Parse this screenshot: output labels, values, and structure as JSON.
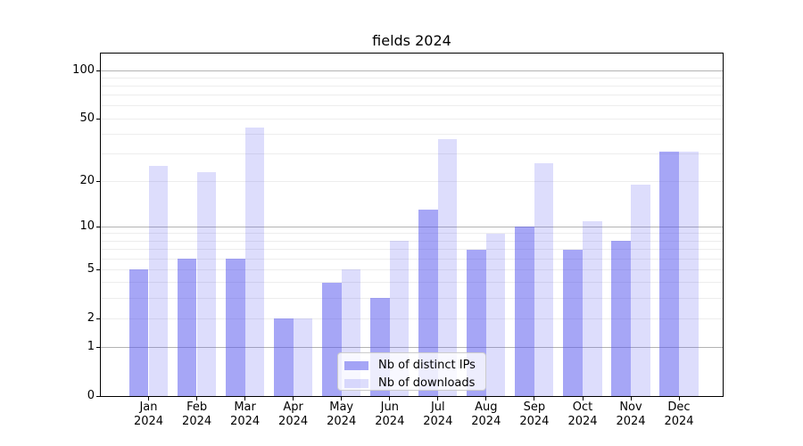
{
  "chart_data": {
    "type": "bar",
    "title": "fields 2024",
    "categories": [
      "Jan",
      "Feb",
      "Mar",
      "Apr",
      "May",
      "Jun",
      "Jul",
      "Aug",
      "Sep",
      "Oct",
      "Nov",
      "Dec"
    ],
    "x_year": "2024",
    "series": [
      {
        "name": "Nb of distinct IPs",
        "color": "rgba(85,85,238,0.52)",
        "values": [
          5,
          6,
          6,
          2,
          4,
          3,
          13,
          7,
          10,
          7,
          8,
          31
        ]
      },
      {
        "name": "Nb of downloads",
        "color": "rgba(85,85,238,0.20)",
        "values": [
          25,
          23,
          44,
          2,
          5,
          8,
          37,
          9,
          26,
          11,
          19,
          31
        ]
      }
    ],
    "xlabel": "",
    "ylabel": "",
    "y_axis": {
      "scale": "log10(1+y)",
      "ticks": [
        0,
        1,
        2,
        5,
        10,
        20,
        50,
        100
      ],
      "ylim": [
        0,
        129
      ],
      "major_gridlines": [
        1,
        10,
        100
      ],
      "minor_gridlines": [
        2,
        3,
        4,
        5,
        6,
        7,
        8,
        9,
        20,
        30,
        40,
        50,
        60,
        70,
        80,
        90
      ]
    },
    "legend": {
      "position": "lower center",
      "entries": [
        "Nb of distinct IPs",
        "Nb of downloads"
      ]
    },
    "grid_colors": {
      "major": "#b3b3b3",
      "minor": "#ededed"
    }
  }
}
